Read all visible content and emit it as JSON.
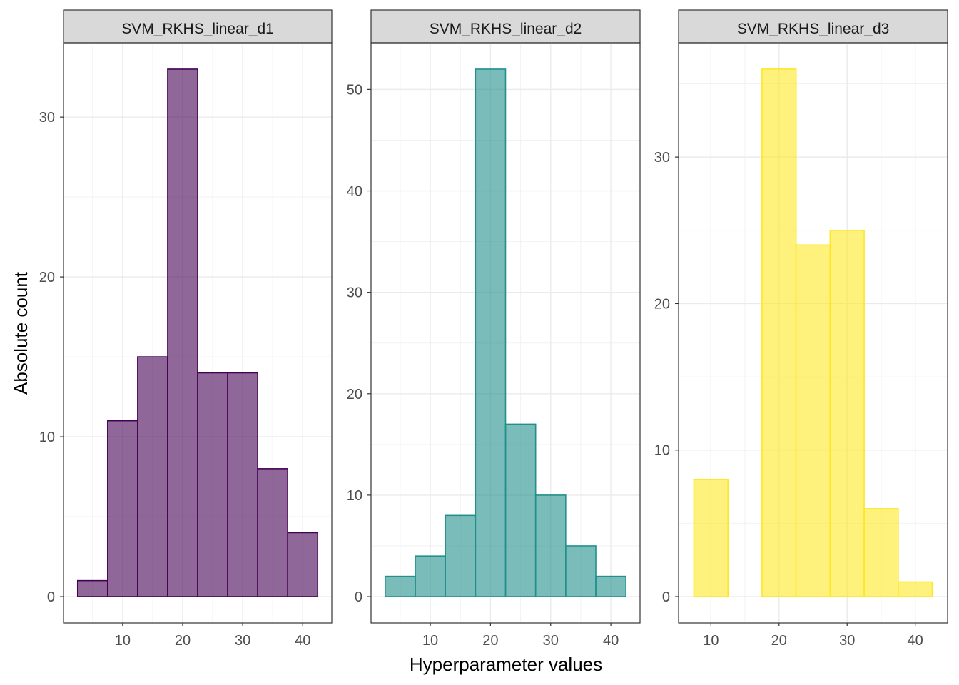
{
  "chart_data": {
    "type": "bar",
    "subtype": "faceted-histogram",
    "xlabel": "Hyperparameter values",
    "ylabel": "Absolute count",
    "grid": true,
    "legend": "none",
    "panels": [
      {
        "title": "SVM_RKHS_linear_d1",
        "fill": "#440154",
        "fill_opacity": 0.6,
        "xlim": [
          0.15,
          44.85
        ],
        "ylim": [
          -1.65,
          34.65
        ],
        "x_ticks": [
          10,
          20,
          30,
          40
        ],
        "y_ticks": [
          0,
          10,
          20,
          30
        ],
        "bins": [
          {
            "x0": 2.5,
            "x1": 7.5,
            "count": 1
          },
          {
            "x0": 7.5,
            "x1": 12.5,
            "count": 11
          },
          {
            "x0": 12.5,
            "x1": 17.5,
            "count": 15
          },
          {
            "x0": 17.5,
            "x1": 22.5,
            "count": 33
          },
          {
            "x0": 22.5,
            "x1": 27.5,
            "count": 14
          },
          {
            "x0": 27.5,
            "x1": 32.5,
            "count": 14
          },
          {
            "x0": 32.5,
            "x1": 37.5,
            "count": 8
          },
          {
            "x0": 37.5,
            "x1": 42.5,
            "count": 4
          }
        ]
      },
      {
        "title": "SVM_RKHS_linear_d2",
        "fill": "#21908C",
        "fill_opacity": 0.6,
        "xlim": [
          0.15,
          44.85
        ],
        "ylim": [
          -2.6,
          54.6
        ],
        "x_ticks": [
          10,
          20,
          30,
          40
        ],
        "y_ticks": [
          0,
          10,
          20,
          30,
          40,
          50
        ],
        "bins": [
          {
            "x0": 2.5,
            "x1": 7.5,
            "count": 2
          },
          {
            "x0": 7.5,
            "x1": 12.5,
            "count": 4
          },
          {
            "x0": 12.5,
            "x1": 17.5,
            "count": 8
          },
          {
            "x0": 17.5,
            "x1": 22.5,
            "count": 52
          },
          {
            "x0": 22.5,
            "x1": 27.5,
            "count": 17
          },
          {
            "x0": 27.5,
            "x1": 32.5,
            "count": 10
          },
          {
            "x0": 32.5,
            "x1": 37.5,
            "count": 5
          },
          {
            "x0": 37.5,
            "x1": 42.5,
            "count": 2
          }
        ]
      },
      {
        "title": "SVM_RKHS_linear_d3",
        "fill": "#FDE725",
        "fill_opacity": 0.6,
        "xlim": [
          5.25,
          44.75
        ],
        "ylim": [
          -1.8,
          37.8
        ],
        "x_ticks": [
          10,
          20,
          30,
          40
        ],
        "y_ticks": [
          0,
          10,
          20,
          30
        ],
        "bins": [
          {
            "x0": 7.5,
            "x1": 12.5,
            "count": 8
          },
          {
            "x0": 12.5,
            "x1": 17.5,
            "count": 0
          },
          {
            "x0": 17.5,
            "x1": 22.5,
            "count": 36
          },
          {
            "x0": 22.5,
            "x1": 27.5,
            "count": 24
          },
          {
            "x0": 27.5,
            "x1": 32.5,
            "count": 25
          },
          {
            "x0": 32.5,
            "x1": 37.5,
            "count": 6
          },
          {
            "x0": 37.5,
            "x1": 42.5,
            "count": 1
          }
        ]
      }
    ]
  }
}
